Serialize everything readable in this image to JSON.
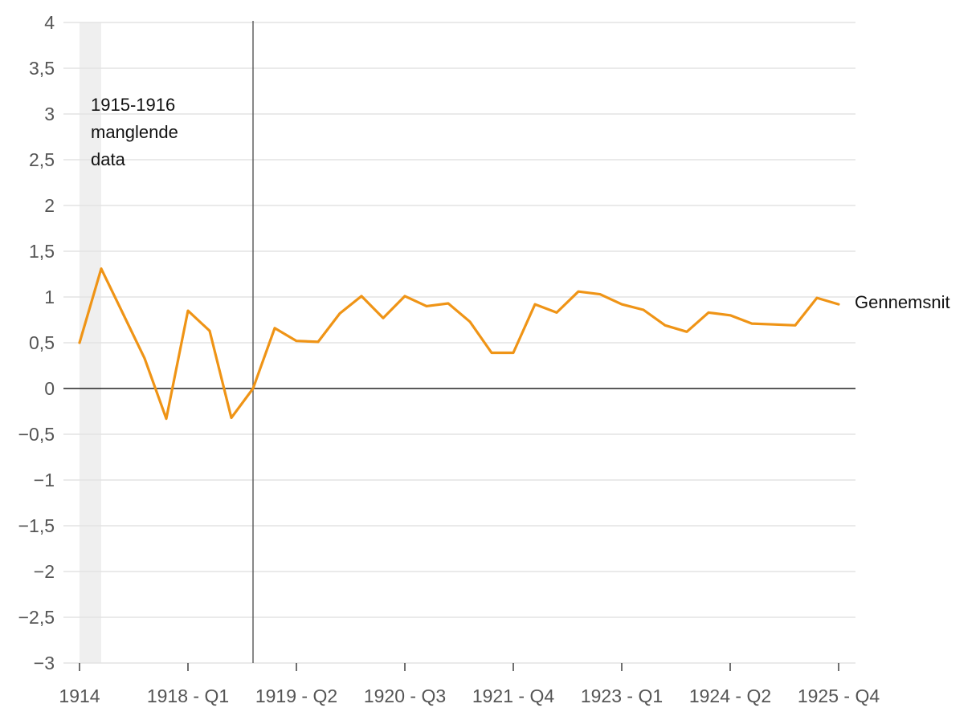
{
  "chart_data": {
    "type": "line",
    "title": "",
    "xlabel": "",
    "ylabel": "",
    "ylim": [
      -3,
      4
    ],
    "yticks": [
      4,
      3.5,
      3,
      2.5,
      2,
      1.5,
      1,
      0.5,
      0,
      -0.5,
      -1,
      -1.5,
      -2,
      -2.5,
      -3
    ],
    "ytick_labels": [
      "4",
      "3,5",
      "3",
      "2,5",
      "2",
      "1,5",
      "1",
      "0,5",
      "0",
      "−0,5",
      "−1",
      "−1,5",
      "−2",
      "−2,5",
      "−3"
    ],
    "x_tick_labels": [
      "1914",
      "1918 - Q1",
      "1919 - Q2",
      "1920 - Q3",
      "1921 - Q4",
      "1923 - Q1",
      "1924 - Q2",
      "1925 - Q4"
    ],
    "x_tick_index": [
      0,
      5,
      10,
      15,
      20,
      25,
      30,
      35
    ],
    "grid": true,
    "color": "#ef9416",
    "shaded_region": {
      "from_index": 0,
      "to_index": 1,
      "color": "#efefef"
    },
    "vertical_line_index": 8,
    "annotation": [
      "1915-1916",
      "manglende",
      "data"
    ],
    "series": [
      {
        "name": "Gennemsnit",
        "values": [
          0.5,
          1.31,
          0.82,
          0.33,
          -0.33,
          0.85,
          0.63,
          -0.32,
          0.0,
          0.66,
          0.52,
          0.51,
          0.82,
          1.01,
          0.77,
          1.01,
          0.9,
          0.93,
          0.73,
          0.39,
          0.39,
          0.92,
          0.83,
          1.06,
          1.03,
          0.92,
          0.86,
          0.69,
          0.62,
          0.83,
          0.8,
          0.71,
          0.7,
          0.69,
          0.99,
          0.92
        ]
      }
    ]
  }
}
